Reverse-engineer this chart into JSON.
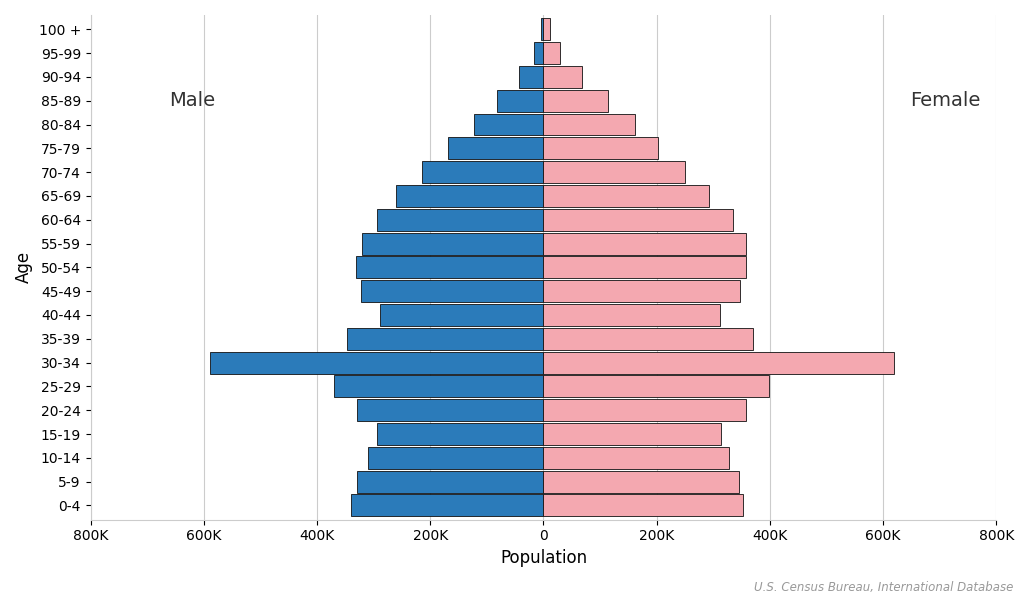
{
  "age_groups": [
    "0-4",
    "5-9",
    "10-14",
    "15-19",
    "20-24",
    "25-29",
    "30-34",
    "35-39",
    "40-44",
    "45-49",
    "50-54",
    "55-59",
    "60-64",
    "65-69",
    "70-74",
    "75-79",
    "80-84",
    "85-89",
    "90-94",
    "95-99",
    "100 +"
  ],
  "male": [
    340000,
    330000,
    310000,
    295000,
    330000,
    370000,
    590000,
    348000,
    288000,
    322000,
    332000,
    320000,
    295000,
    260000,
    215000,
    168000,
    122000,
    82000,
    44000,
    17000,
    4000
  ],
  "female": [
    352000,
    345000,
    328000,
    314000,
    358000,
    398000,
    620000,
    370000,
    312000,
    348000,
    358000,
    358000,
    335000,
    292000,
    250000,
    202000,
    162000,
    114000,
    68000,
    29000,
    11000
  ],
  "male_color": "#2b7bba",
  "female_color": "#f4a8b0",
  "edge_color": "#111111",
  "background_color": "#ffffff",
  "xlim_min": -800000,
  "xlim_max": 800000,
  "xlabel": "Population",
  "ylabel": "Age",
  "male_label": "Male",
  "female_label": "Female",
  "source_text": "U.S. Census Bureau, International Database",
  "tick_fontsize": 10,
  "label_fontsize": 12,
  "gender_label_fontsize": 14
}
